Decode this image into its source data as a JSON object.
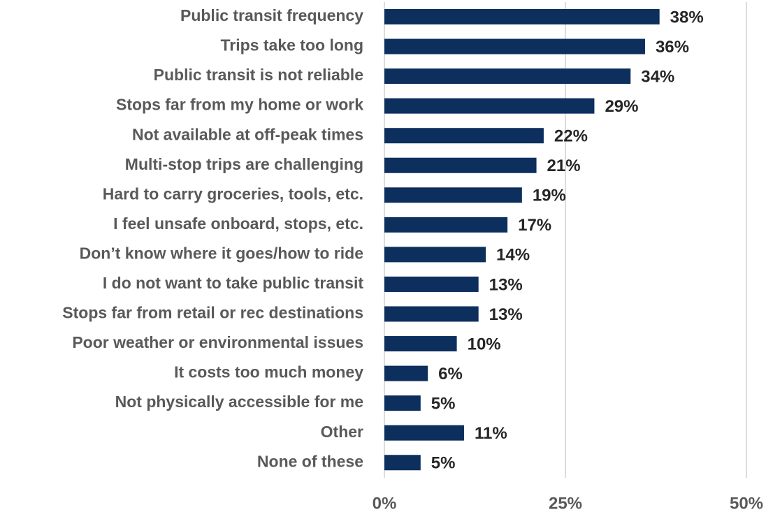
{
  "chart_data": {
    "type": "barh",
    "categories": [
      "Public transit frequency",
      "Trips take too long",
      "Public transit is not reliable",
      "Stops far from my home or work",
      "Not available at off-peak times",
      "Multi-stop trips are challenging",
      "Hard to carry groceries, tools, etc.",
      "I feel unsafe onboard, stops, etc.",
      "Don’t know where it goes/how to ride",
      "I do not want to take public transit",
      "Stops far from retail or rec destinations",
      "Poor weather or environmental issues",
      "It costs too much money",
      "Not physically accessible for me",
      "Other",
      "None of these"
    ],
    "values": [
      38,
      36,
      34,
      29,
      22,
      21,
      19,
      17,
      14,
      13,
      13,
      10,
      6,
      5,
      11,
      5
    ],
    "value_labels": [
      "38%",
      "36%",
      "34%",
      "29%",
      "22%",
      "21%",
      "19%",
      "17%",
      "14%",
      "13%",
      "13%",
      "10%",
      "6%",
      "5%",
      "11%",
      "5%"
    ],
    "color": "#0d2f5e",
    "xlim": [
      0,
      50
    ],
    "xticks": [
      {
        "value": 0,
        "label": "0%"
      },
      {
        "value": 25,
        "label": "25%"
      },
      {
        "value": 50,
        "label": "50%"
      }
    ],
    "grid": true
  }
}
